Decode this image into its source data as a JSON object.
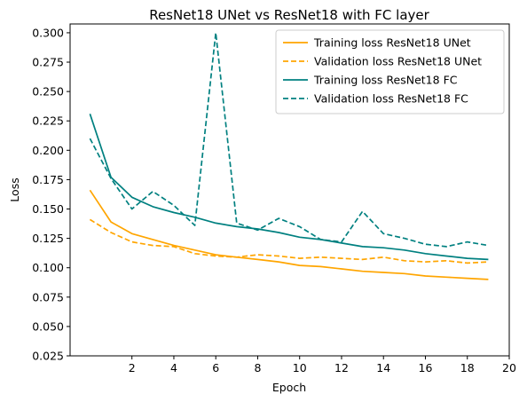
{
  "chart_data": {
    "type": "line",
    "title": "ResNet18 UNet vs ResNet18 with FC layer",
    "xlabel": "Epoch",
    "ylabel": "Loss",
    "xlim": [
      -0.95,
      20
    ],
    "ylim": [
      0.025,
      0.3075
    ],
    "xticks": [
      2,
      4,
      6,
      8,
      10,
      12,
      14,
      16,
      18,
      20
    ],
    "xtick_labels": [
      "2",
      "4",
      "6",
      "8",
      "10",
      "12",
      "14",
      "16",
      "18",
      "20"
    ],
    "yticks": [
      0.025,
      0.05,
      0.075,
      0.1,
      0.125,
      0.15,
      0.175,
      0.2,
      0.225,
      0.25,
      0.275,
      0.3
    ],
    "ytick_labels": [
      "0.025",
      "0.050",
      "0.075",
      "0.100",
      "0.125",
      "0.150",
      "0.175",
      "0.200",
      "0.225",
      "0.250",
      "0.275",
      "0.300"
    ],
    "grid": false,
    "legend_position": "top-right",
    "x": [
      0,
      1,
      2,
      3,
      4,
      5,
      6,
      7,
      8,
      9,
      10,
      11,
      12,
      13,
      14,
      15,
      16,
      17,
      18,
      19
    ],
    "series": [
      {
        "name": "Training loss ResNet18 UNet",
        "color": "#ffa500",
        "dashed": false,
        "values": [
          0.166,
          0.139,
          0.129,
          0.124,
          0.119,
          0.115,
          0.111,
          0.109,
          0.107,
          0.105,
          0.102,
          0.101,
          0.099,
          0.097,
          0.096,
          0.095,
          0.093,
          0.092,
          0.091,
          0.09
        ]
      },
      {
        "name": "Validation loss ResNet18 UNet",
        "color": "#ffa500",
        "dashed": true,
        "values": [
          0.141,
          0.13,
          0.122,
          0.119,
          0.118,
          0.112,
          0.11,
          0.109,
          0.111,
          0.11,
          0.108,
          0.109,
          0.108,
          0.107,
          0.109,
          0.106,
          0.105,
          0.106,
          0.104,
          0.105
        ]
      },
      {
        "name": "Training loss ResNet18 FC",
        "color": "#008080",
        "dashed": false,
        "values": [
          0.231,
          0.177,
          0.16,
          0.152,
          0.147,
          0.143,
          0.138,
          0.135,
          0.133,
          0.13,
          0.126,
          0.124,
          0.121,
          0.118,
          0.117,
          0.115,
          0.112,
          0.11,
          0.108,
          0.107
        ]
      },
      {
        "name": "Validation loss ResNet18 FC",
        "color": "#008080",
        "dashed": true,
        "values": [
          0.21,
          0.176,
          0.15,
          0.165,
          0.153,
          0.136,
          0.3,
          0.138,
          0.132,
          0.142,
          0.135,
          0.124,
          0.122,
          0.148,
          0.129,
          0.125,
          0.12,
          0.118,
          0.122,
          0.119
        ]
      }
    ]
  }
}
